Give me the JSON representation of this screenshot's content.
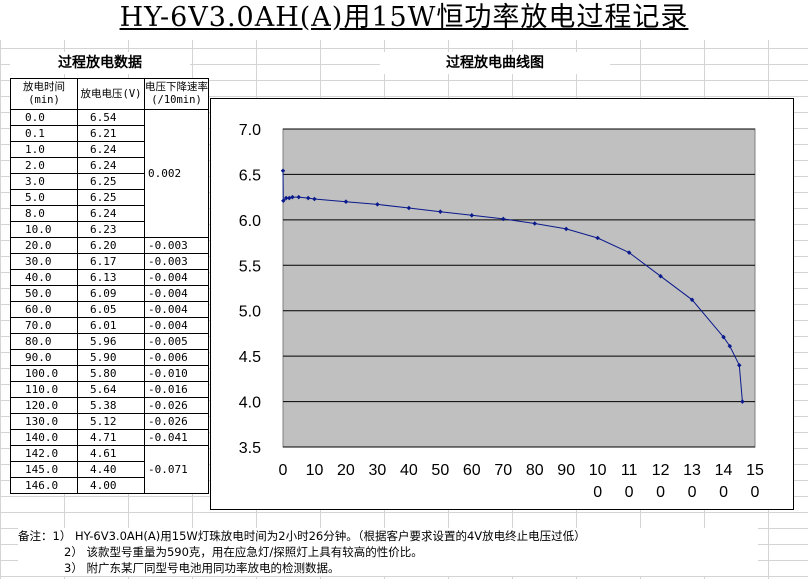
{
  "title": "HY-6V3.0AH(A)用15W恒功率放电过程记录",
  "table_title": "过程放电数据",
  "chart_title": "过程放电曲线图",
  "table": {
    "headers": [
      "放电时间(min)",
      "放电电压(V)",
      "电压下降速率(/10min)"
    ],
    "rows": [
      {
        "t": "0.0",
        "v": "6.54"
      },
      {
        "t": "0.1",
        "v": "6.21"
      },
      {
        "t": "1.0",
        "v": "6.24"
      },
      {
        "t": "2.0",
        "v": "6.24"
      },
      {
        "t": "3.0",
        "v": "6.25"
      },
      {
        "t": "5.0",
        "v": "6.25"
      },
      {
        "t": "8.0",
        "v": "6.24"
      },
      {
        "t": "10.0",
        "v": "6.23"
      },
      {
        "t": "20.0",
        "v": "6.20",
        "r": "-0.003"
      },
      {
        "t": "30.0",
        "v": "6.17",
        "r": "-0.003"
      },
      {
        "t": "40.0",
        "v": "6.13",
        "r": "-0.004"
      },
      {
        "t": "50.0",
        "v": "6.09",
        "r": "-0.004"
      },
      {
        "t": "60.0",
        "v": "6.05",
        "r": "-0.004"
      },
      {
        "t": "70.0",
        "v": "6.01",
        "r": "-0.004"
      },
      {
        "t": "80.0",
        "v": "5.96",
        "r": "-0.005"
      },
      {
        "t": "90.0",
        "v": "5.90",
        "r": "-0.006"
      },
      {
        "t": "100.0",
        "v": "5.80",
        "r": "-0.010"
      },
      {
        "t": "110.0",
        "v": "5.64",
        "r": "-0.016"
      },
      {
        "t": "120.0",
        "v": "5.38",
        "r": "-0.026"
      },
      {
        "t": "130.0",
        "v": "5.12",
        "r": "-0.026"
      },
      {
        "t": "140.0",
        "v": "4.71",
        "r": "-0.041"
      },
      {
        "t": "142.0",
        "v": "4.61"
      },
      {
        "t": "145.0",
        "v": "4.40"
      },
      {
        "t": "146.0",
        "v": "4.00"
      }
    ],
    "rate_first_group": "0.002",
    "rate_last_group": "-0.071"
  },
  "notes": [
    "备注：1） HY-6V3.0AH(A)用15W灯珠放电时间为2小时26分钟。（根据客户要求设置的4V放电终止电压过低）",
    "2） 该款型号重量为590克，用在应急灯/探照灯上具有较高的性价比。",
    "3） 附广东某厂同型号电池用同功率放电的检测数据。"
  ],
  "chart_data": {
    "type": "line",
    "x": [
      0,
      0.1,
      1,
      2,
      3,
      5,
      8,
      10,
      20,
      30,
      40,
      50,
      60,
      70,
      80,
      90,
      100,
      110,
      120,
      130,
      140,
      142,
      145,
      146
    ],
    "y": [
      6.54,
      6.21,
      6.24,
      6.24,
      6.25,
      6.25,
      6.24,
      6.23,
      6.2,
      6.17,
      6.13,
      6.09,
      6.05,
      6.01,
      5.96,
      5.9,
      5.8,
      5.64,
      5.38,
      5.12,
      4.71,
      4.61,
      4.4,
      4.0
    ],
    "xlim": [
      0,
      150
    ],
    "ylim": [
      3.5,
      7.0
    ],
    "x_ticks": [
      {
        "top": "0",
        "bottom": ""
      },
      {
        "top": "10",
        "bottom": ""
      },
      {
        "top": "20",
        "bottom": ""
      },
      {
        "top": "30",
        "bottom": ""
      },
      {
        "top": "40",
        "bottom": ""
      },
      {
        "top": "50",
        "bottom": ""
      },
      {
        "top": "60",
        "bottom": ""
      },
      {
        "top": "70",
        "bottom": ""
      },
      {
        "top": "80",
        "bottom": ""
      },
      {
        "top": "90",
        "bottom": ""
      },
      {
        "top": "10",
        "bottom": "0"
      },
      {
        "top": "11",
        "bottom": "0"
      },
      {
        "top": "12",
        "bottom": "0"
      },
      {
        "top": "13",
        "bottom": "0"
      },
      {
        "top": "14",
        "bottom": "0"
      },
      {
        "top": "15",
        "bottom": "0"
      }
    ],
    "y_ticks": [
      "3.5",
      "4.0",
      "4.5",
      "5.0",
      "5.5",
      "6.0",
      "6.5",
      "7.0"
    ],
    "grid": true,
    "colors": {
      "line": "#0a1a8c",
      "plot_bg": "#c0c0c0"
    }
  }
}
